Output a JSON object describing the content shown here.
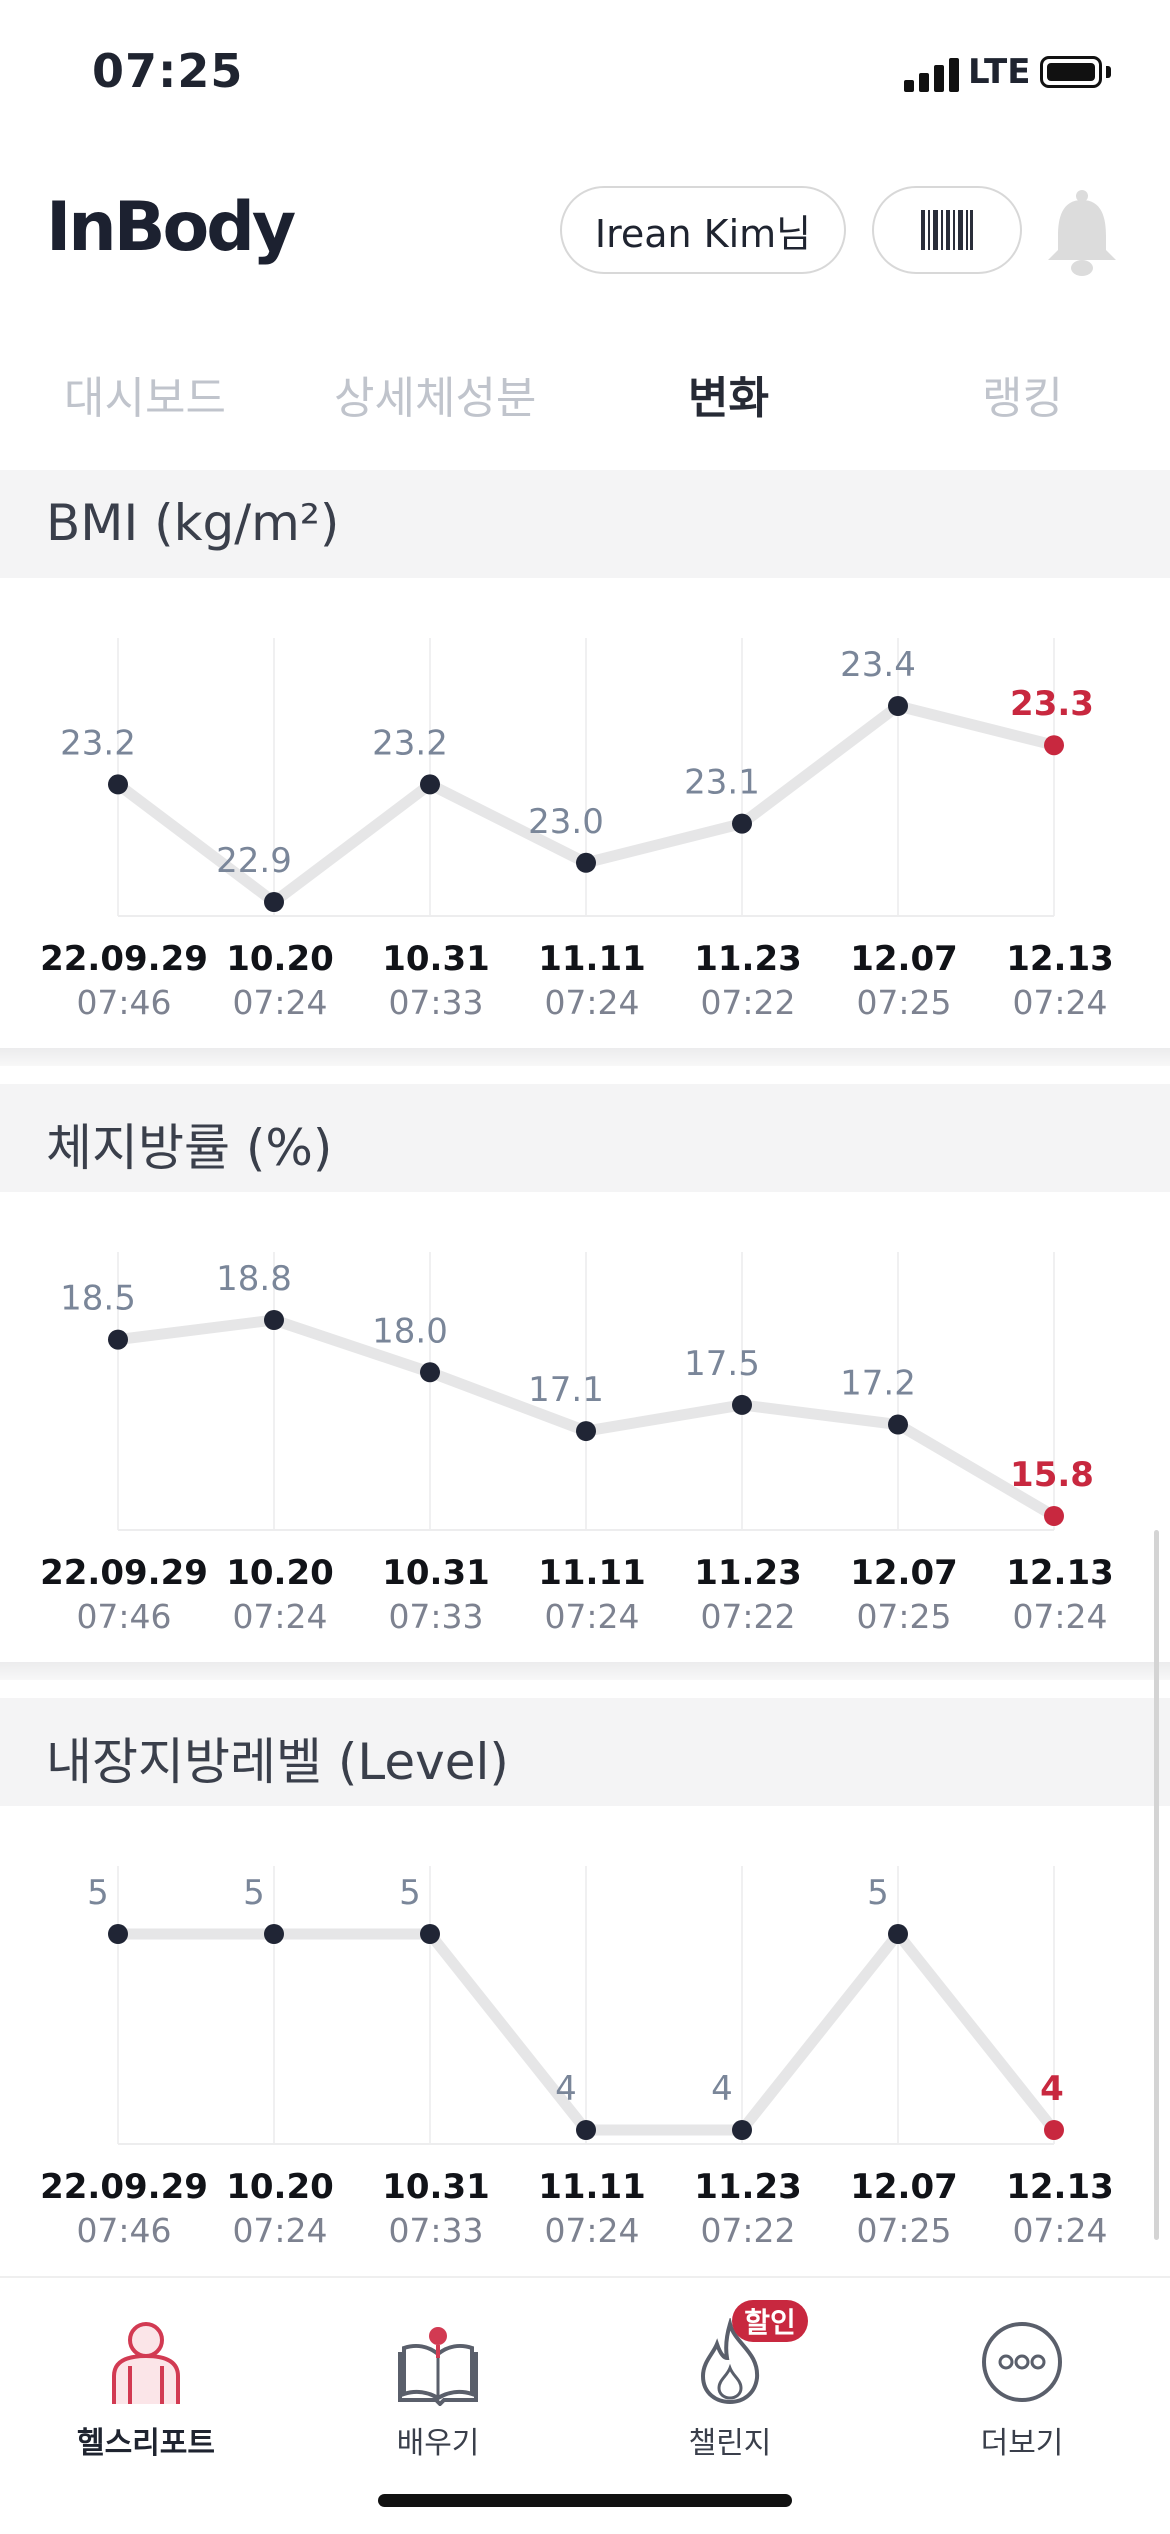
{
  "status": {
    "time": "07:25",
    "network": "LTE"
  },
  "header": {
    "logo": "InBody",
    "user": "Irean Kim님",
    "barcode_icon": "barcode-icon",
    "bell_icon": "bell-icon"
  },
  "tabs": [
    {
      "label": "대시보드",
      "active": false
    },
    {
      "label": "상세체성분",
      "active": false
    },
    {
      "label": "변화",
      "active": true
    },
    {
      "label": "랭킹",
      "active": false
    }
  ],
  "colors": {
    "line": "#e6e6e7",
    "dot": "#202535",
    "latest": "#c8283f",
    "value_label": "#7a8699"
  },
  "chart_data": [
    {
      "type": "line",
      "title": "BMI (kg/m²)",
      "dates": [
        "22.09.29",
        "10.20",
        "10.31",
        "11.11",
        "11.23",
        "12.07",
        "12.13"
      ],
      "times": [
        "07:46",
        "07:24",
        "07:33",
        "07:24",
        "07:22",
        "07:25",
        "07:24"
      ],
      "values": [
        23.2,
        22.9,
        23.2,
        23.0,
        23.1,
        23.4,
        23.3
      ],
      "labels": [
        "23.2",
        "22.9",
        "23.2",
        "23.0",
        "23.1",
        "23.4",
        "23.3"
      ],
      "ylim": [
        22.9,
        23.4
      ]
    },
    {
      "type": "line",
      "title": "체지방률 (%)",
      "dates": [
        "22.09.29",
        "10.20",
        "10.31",
        "11.11",
        "11.23",
        "12.07",
        "12.13"
      ],
      "times": [
        "07:46",
        "07:24",
        "07:33",
        "07:24",
        "07:22",
        "07:25",
        "07:24"
      ],
      "values": [
        18.5,
        18.8,
        18.0,
        17.1,
        17.5,
        17.2,
        15.8
      ],
      "labels": [
        "18.5",
        "18.8",
        "18.0",
        "17.1",
        "17.5",
        "17.2",
        "15.8"
      ],
      "ylim": [
        15.8,
        18.8
      ]
    },
    {
      "type": "line",
      "title": "내장지방레벨 (Level)",
      "dates": [
        "22.09.29",
        "10.20",
        "10.31",
        "11.11",
        "11.23",
        "12.07",
        "12.13"
      ],
      "times": [
        "07:46",
        "07:24",
        "07:33",
        "07:24",
        "07:22",
        "07:25",
        "07:24"
      ],
      "values": [
        5,
        5,
        5,
        4,
        4,
        5,
        4
      ],
      "labels": [
        "5",
        "5",
        "5",
        "4",
        "4",
        "5",
        "4"
      ],
      "ylim": [
        4,
        5
      ]
    }
  ],
  "bottom_nav": [
    {
      "label": "헬스리포트",
      "icon": "health-report-icon",
      "active": true
    },
    {
      "label": "배우기",
      "icon": "book-icon",
      "active": false
    },
    {
      "label": "챌린지",
      "icon": "flame-icon",
      "active": false
    },
    {
      "label": "더보기",
      "icon": "more-icon",
      "active": false
    }
  ],
  "challenge_badge": "할인"
}
